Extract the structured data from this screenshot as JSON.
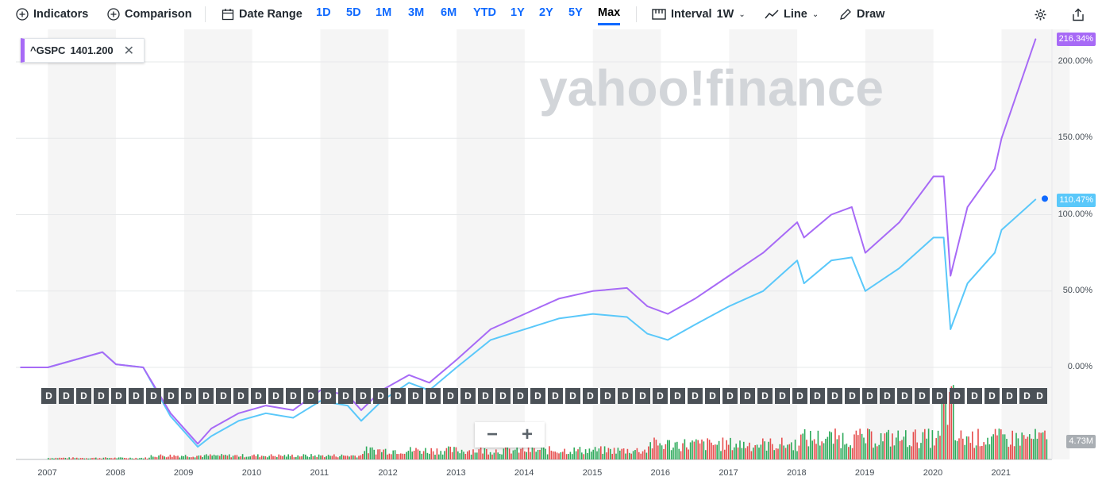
{
  "toolbar": {
    "indicators": "Indicators",
    "comparison": "Comparison",
    "date_range": "Date Range",
    "ranges": [
      "1D",
      "5D",
      "1M",
      "3M",
      "6M",
      "YTD",
      "1Y",
      "2Y",
      "5Y",
      "Max"
    ],
    "active_range": "Max",
    "interval": "Interval",
    "interval_value": "1W",
    "chart_type": "Line",
    "draw": "Draw"
  },
  "watermark": "yahoo!finance",
  "legend": {
    "symbol": "^GSPC",
    "value": "1401.200"
  },
  "flag_label": "D",
  "zoom": {
    "out": "−",
    "in": "+"
  },
  "colors": {
    "primary": "#a76af6",
    "comparison": "#5ac8fa",
    "vol_up": "#2daa5a",
    "vol_down": "#e64d4d",
    "accent": "#0f69ff"
  },
  "chart_data": {
    "type": "line",
    "x": [
      2006.6,
      2007.0,
      2007.4,
      2007.8,
      2008.0,
      2008.4,
      2008.8,
      2009.2,
      2009.4,
      2009.8,
      2010.2,
      2010.6,
      2011.0,
      2011.4,
      2011.6,
      2011.9,
      2012.3,
      2012.6,
      2013.0,
      2013.5,
      2014.0,
      2014.5,
      2015.0,
      2015.5,
      2015.8,
      2016.1,
      2016.5,
      2017.0,
      2017.5,
      2018.0,
      2018.1,
      2018.5,
      2018.8,
      2019.0,
      2019.5,
      2020.0,
      2020.15,
      2020.25,
      2020.5,
      2020.9,
      2021.0,
      2021.5
    ],
    "series": [
      {
        "values": [
          0,
          0,
          5,
          10,
          2,
          0,
          -30,
          -50,
          -40,
          -30,
          -25,
          -28,
          -15,
          -18,
          -28,
          -15,
          -5,
          -10,
          5,
          25,
          35,
          45,
          50,
          52,
          40,
          35,
          45,
          60,
          75,
          95,
          85,
          100,
          105,
          75,
          95,
          125,
          125,
          60,
          105,
          130,
          150,
          215
        ]
      },
      {
        "values": [
          0,
          0,
          5,
          10,
          2,
          0,
          -32,
          -52,
          -45,
          -35,
          -30,
          -33,
          -22,
          -25,
          -35,
          -22,
          -10,
          -15,
          0,
          18,
          25,
          32,
          35,
          33,
          22,
          18,
          28,
          40,
          50,
          70,
          55,
          70,
          72,
          50,
          65,
          85,
          85,
          25,
          55,
          75,
          90,
          110
        ]
      }
    ],
    "yticks": [
      "200.00%",
      "150.00%",
      "100.00%",
      "50.00%",
      "0.00%"
    ],
    "xticks": [
      "2007",
      "2008",
      "2009",
      "2010",
      "2011",
      "2012",
      "2013",
      "2014",
      "2015",
      "2016",
      "2017",
      "2018",
      "2019",
      "2020",
      "2021"
    ],
    "last_primary": "216.34%",
    "last_comparison": "110.47%",
    "volume_last": "4.73M"
  }
}
